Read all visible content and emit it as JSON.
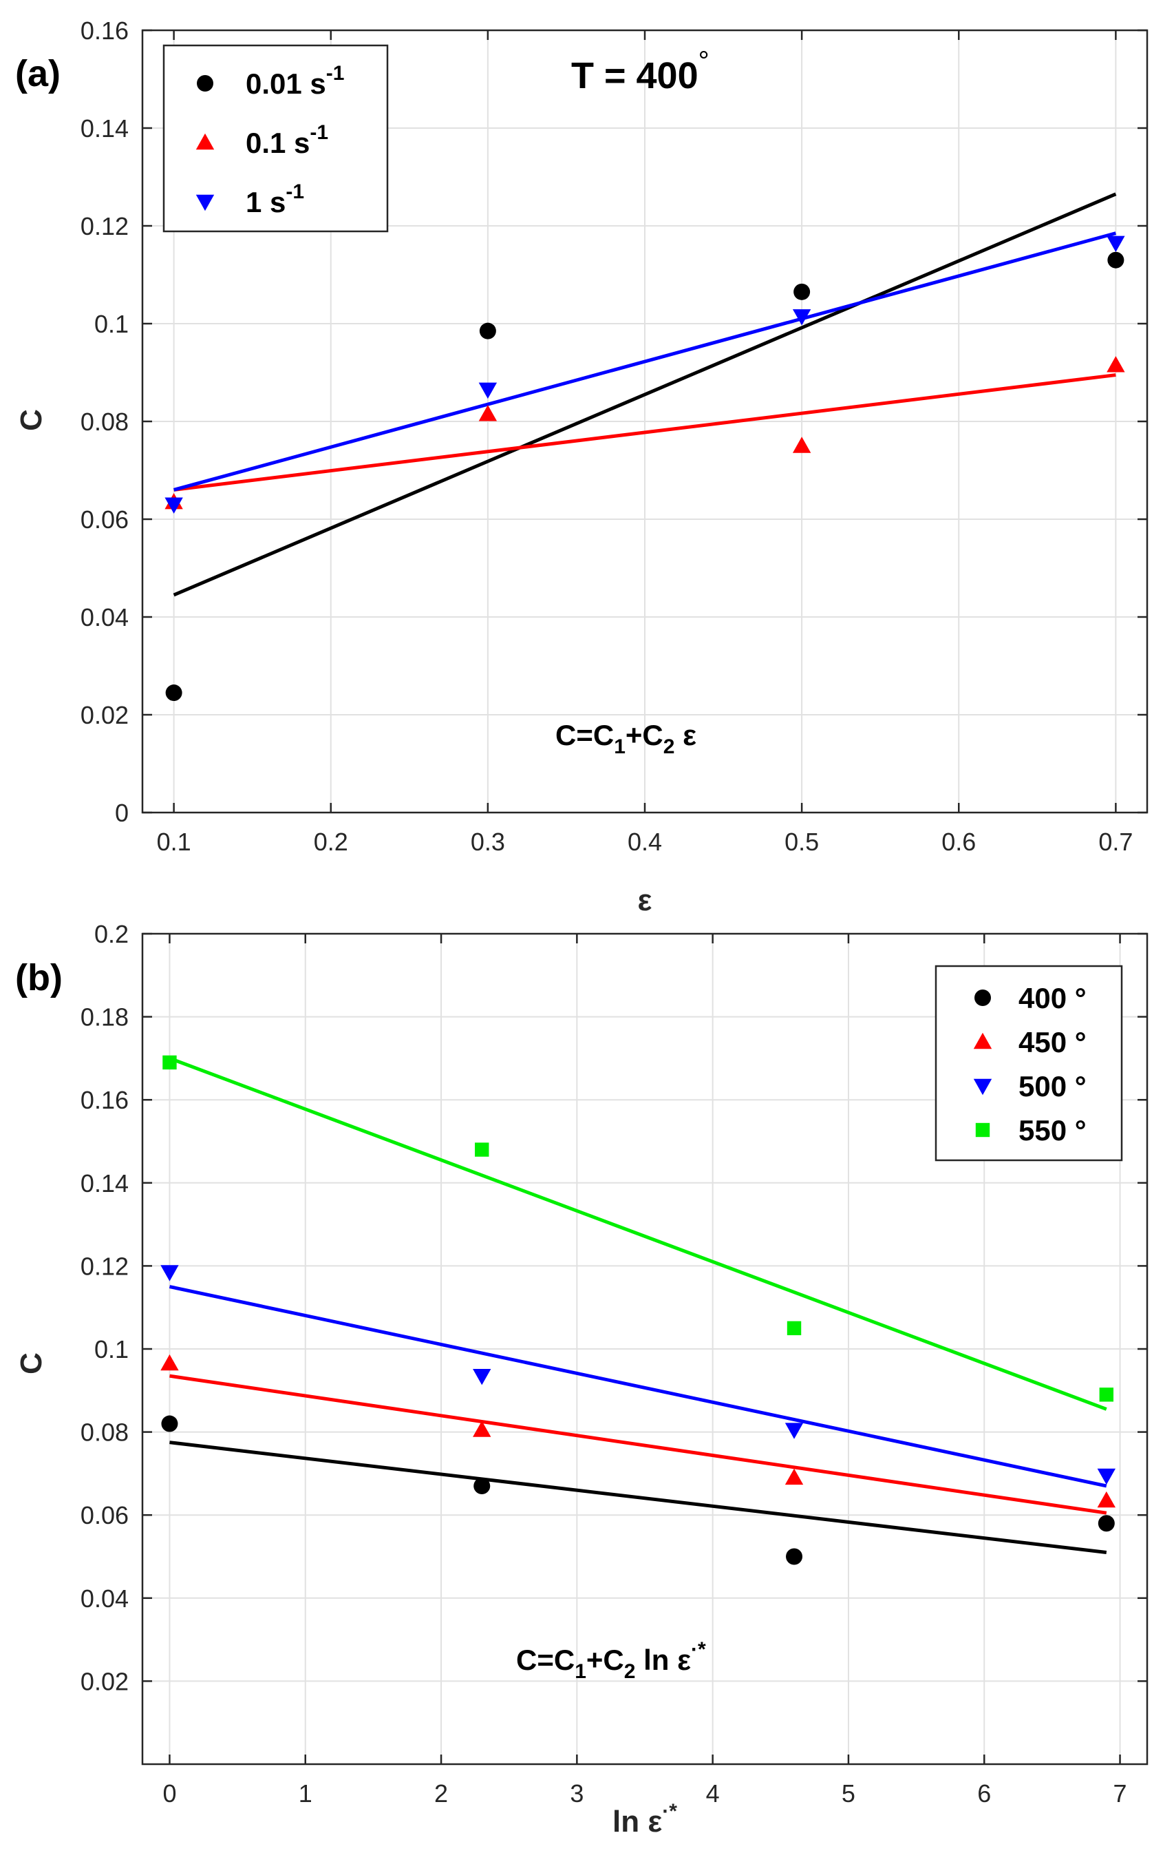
{
  "chart_data": [
    {
      "panel_label": "(a)",
      "type": "scatter",
      "annotation": "T = 400",
      "annotation_degree": "°",
      "equation": {
        "base": "C=C",
        "sub1": "1",
        "mid": "+C",
        "sub2": "2",
        "tail": " ε"
      },
      "xlabel": "ε",
      "ylabel": "C",
      "xlim": [
        0.08,
        0.72
      ],
      "ylim": [
        0,
        0.16
      ],
      "xticks": [
        0.1,
        0.2,
        0.3,
        0.4,
        0.5,
        0.6,
        0.7
      ],
      "xtick_labels": [
        "0.1",
        "0.2",
        "0.3",
        "0.4",
        "0.5",
        "0.6",
        "0.7"
      ],
      "yticks": [
        0,
        0.02,
        0.04,
        0.06,
        0.08,
        0.1,
        0.12,
        0.14,
        0.16
      ],
      "ytick_labels": [
        "0",
        "0.02",
        "0.04",
        "0.06",
        "0.08",
        "0.1",
        "0.12",
        "0.14",
        "0.16"
      ],
      "grid": true,
      "legend_position": "top-left",
      "series": [
        {
          "name": "0.01 s",
          "sup": "-1",
          "marker": "circle",
          "color": "#000000",
          "x": [
            0.1,
            0.3,
            0.5,
            0.7
          ],
          "y": [
            0.0245,
            0.0985,
            0.1065,
            0.113
          ],
          "fit_x": [
            0.1,
            0.7
          ],
          "fit_y": [
            0.0445,
            0.1265
          ]
        },
        {
          "name": "0.1 s",
          "sup": "-1",
          "marker": "triangle-up",
          "color": "#ff0000",
          "x": [
            0.1,
            0.3,
            0.5,
            0.7
          ],
          "y": [
            0.0635,
            0.0815,
            0.075,
            0.0915
          ],
          "fit_x": [
            0.1,
            0.7
          ],
          "fit_y": [
            0.066,
            0.0895
          ]
        },
        {
          "name": "1 s",
          "sup": "-1",
          "marker": "triangle-down",
          "color": "#0000ff",
          "x": [
            0.1,
            0.3,
            0.5,
            0.7
          ],
          "y": [
            0.063,
            0.0865,
            0.1015,
            0.1165
          ],
          "fit_x": [
            0.1,
            0.7
          ],
          "fit_y": [
            0.066,
            0.1185
          ]
        }
      ]
    },
    {
      "panel_label": "(b)",
      "type": "scatter",
      "equation": {
        "base": "C=C",
        "sub1": "1",
        "mid": "+C",
        "sub2": "2",
        "tail": " ln ε",
        "sup": "·*"
      },
      "xlabel": "ln ε",
      "xlabel_sup": "·*",
      "ylabel": "C",
      "xlim": [
        -0.2,
        7.2
      ],
      "ylim": [
        0,
        0.2
      ],
      "xticks": [
        0,
        1,
        2,
        3,
        4,
        5,
        6,
        7
      ],
      "xtick_labels": [
        "0",
        "1",
        "2",
        "3",
        "4",
        "5",
        "6",
        "7"
      ],
      "yticks": [
        0.02,
        0.04,
        0.06,
        0.08,
        0.1,
        0.12,
        0.14,
        0.16,
        0.18,
        0.2
      ],
      "ytick_labels": [
        "0.02",
        "0.04",
        "0.06",
        "0.08",
        "0.1",
        "0.12",
        "0.14",
        "0.16",
        "0.18",
        "0.2"
      ],
      "grid": true,
      "legend_position": "top-right",
      "series": [
        {
          "name": "400 °",
          "marker": "circle",
          "color": "#000000",
          "x": [
            0,
            2.3,
            4.6,
            6.9
          ],
          "y": [
            0.082,
            0.067,
            0.05,
            0.058
          ],
          "fit_x": [
            0,
            6.9
          ],
          "fit_y": [
            0.0775,
            0.051
          ]
        },
        {
          "name": "450 °",
          "marker": "triangle-up",
          "color": "#ff0000",
          "x": [
            0,
            2.3,
            4.6,
            6.9
          ],
          "y": [
            0.0965,
            0.0805,
            0.069,
            0.0635
          ],
          "fit_x": [
            0,
            6.9
          ],
          "fit_y": [
            0.0935,
            0.0605
          ]
        },
        {
          "name": "500 °",
          "marker": "triangle-down",
          "color": "#0000ff",
          "x": [
            0,
            2.3,
            4.6,
            6.9
          ],
          "y": [
            0.1185,
            0.0935,
            0.0805,
            0.0695
          ],
          "fit_x": [
            0,
            6.9
          ],
          "fit_y": [
            0.115,
            0.067
          ]
        },
        {
          "name": "550 °",
          "marker": "square",
          "color": "#00ee00",
          "x": [
            0,
            2.3,
            4.6,
            6.9
          ],
          "y": [
            0.169,
            0.148,
            0.105,
            0.089
          ],
          "fit_x": [
            0,
            6.9
          ],
          "fit_y": [
            0.17,
            0.0855
          ]
        }
      ]
    }
  ]
}
